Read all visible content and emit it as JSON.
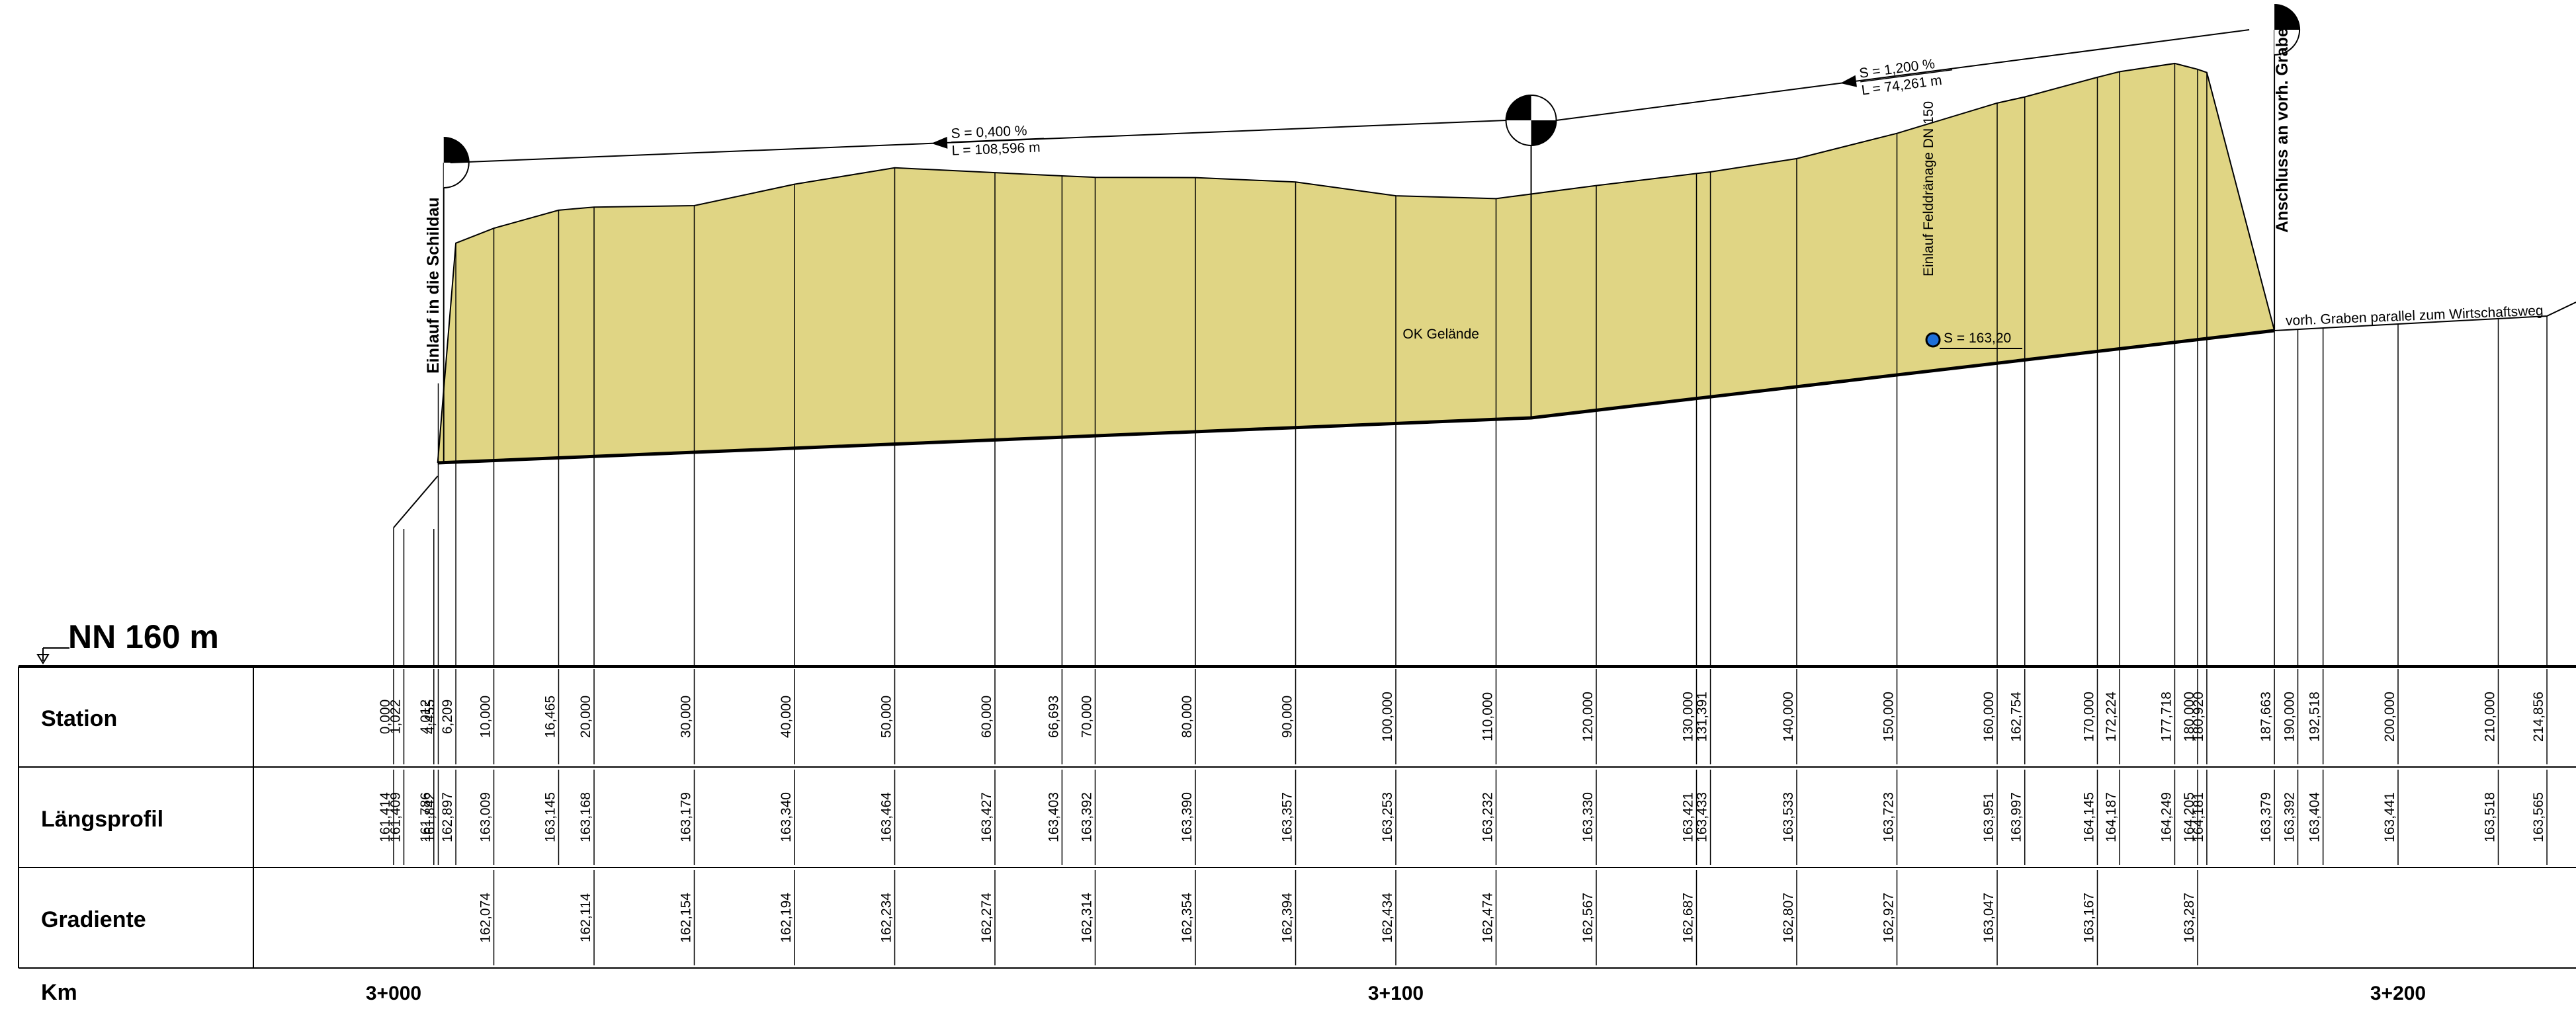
{
  "datum_label": "NN 160 m",
  "rows": {
    "station": "Station",
    "laengsprofil": "Längsprofil",
    "gradiente": "Gradiente",
    "km": "Km"
  },
  "colors": {
    "fill": "#e0d584",
    "line": "#000000",
    "marker": "#1e6fd9"
  },
  "stations": [
    {
      "s": "0,000",
      "l": "161,414",
      "g": ""
    },
    {
      "s": "1,022",
      "l": "161,409",
      "g": ""
    },
    {
      "s": "4,012",
      "l": "161,786",
      "g": ""
    },
    {
      "s": "4,455",
      "l": "161,842",
      "g": ""
    },
    {
      "s": "6,209",
      "l": "162,897",
      "g": ""
    },
    {
      "s": "10,000",
      "l": "163,009",
      "g": "162,074"
    },
    {
      "s": "16,465",
      "l": "163,145",
      "g": ""
    },
    {
      "s": "20,000",
      "l": "163,168",
      "g": "162,114"
    },
    {
      "s": "30,000",
      "l": "163,179",
      "g": "162,154"
    },
    {
      "s": "40,000",
      "l": "163,340",
      "g": "162,194"
    },
    {
      "s": "50,000",
      "l": "163,464",
      "g": "162,234"
    },
    {
      "s": "60,000",
      "l": "163,427",
      "g": "162,274"
    },
    {
      "s": "66,693",
      "l": "163,403",
      "g": ""
    },
    {
      "s": "70,000",
      "l": "163,392",
      "g": "162,314"
    },
    {
      "s": "80,000",
      "l": "163,390",
      "g": "162,354"
    },
    {
      "s": "90,000",
      "l": "163,357",
      "g": "162,394"
    },
    {
      "s": "100,000",
      "l": "163,253",
      "g": "162,434"
    },
    {
      "s": "110,000",
      "l": "163,232",
      "g": "162,474"
    },
    {
      "s": "120,000",
      "l": "163,330",
      "g": "162,567"
    },
    {
      "s": "130,000",
      "l": "163,421",
      "g": "162,687"
    },
    {
      "s": "131,391",
      "l": "163,433",
      "g": ""
    },
    {
      "s": "140,000",
      "l": "163,533",
      "g": "162,807"
    },
    {
      "s": "150,000",
      "l": "163,723",
      "g": "162,927"
    },
    {
      "s": "160,000",
      "l": "163,951",
      "g": "163,047"
    },
    {
      "s": "162,754",
      "l": "163,997",
      "g": ""
    },
    {
      "s": "170,000",
      "l": "164,145",
      "g": "163,167"
    },
    {
      "s": "172,224",
      "l": "164,187",
      "g": ""
    },
    {
      "s": "177,718",
      "l": "164,249",
      "g": ""
    },
    {
      "s": "180,000",
      "l": "164,205",
      "g": "163,287"
    },
    {
      "s": "180,920",
      "l": "164,181",
      "g": ""
    },
    {
      "s": "187,663",
      "l": "163,379",
      "g": ""
    },
    {
      "s": "190,000",
      "l": "163,392",
      "g": ""
    },
    {
      "s": "192,518",
      "l": "163,404",
      "g": ""
    },
    {
      "s": "200,000",
      "l": "163,441",
      "g": ""
    },
    {
      "s": "210,000",
      "l": "163,518",
      "g": ""
    },
    {
      "s": "214,856",
      "l": "163,565",
      "g": ""
    }
  ],
  "km_labels": [
    {
      "km": 0,
      "label": "3+000"
    },
    {
      "km": 100,
      "label": "3+100"
    },
    {
      "km": 200,
      "label": "3+200"
    }
  ],
  "structures": [
    {
      "id": "einlauf-schildau",
      "station": 5.0,
      "label": "Einlauf in die Schildau",
      "bold": true
    },
    {
      "id": "mid-manhole",
      "station": 113.5,
      "label": "",
      "bold": false
    },
    {
      "id": "anschluss-graben",
      "station": 187.663,
      "label": "Anschluss an vorh. Graben",
      "bold": true
    }
  ],
  "slopes": [
    {
      "s": "S = 0,400 %",
      "l": "L = 108,596 m"
    },
    {
      "s": "S = 1,200 %",
      "l": "L = 74,261 m"
    }
  ],
  "annotations": {
    "ok_gelaende": "OK Gelände",
    "feldraenage": "Einlauf Felddränage DN 150",
    "ditch": "vorh. Graben parallel zum Wirtschaftsweg",
    "marker": "S = 163,20"
  }
}
